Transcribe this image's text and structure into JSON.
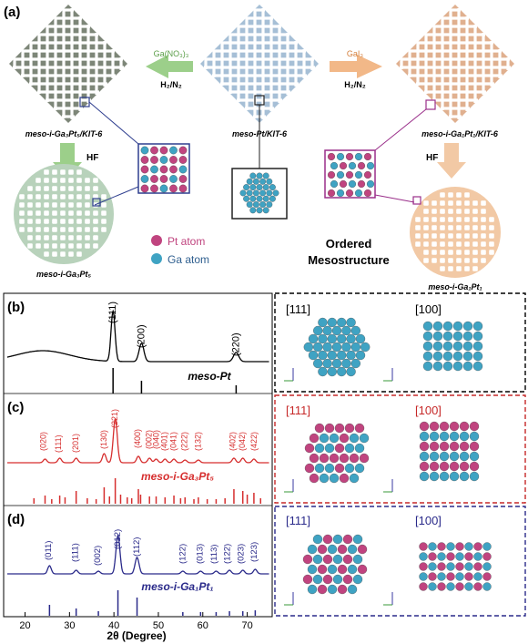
{
  "panel_a": {
    "label": "(a)",
    "left_arrow": {
      "top": "Ga(NO₃)₃",
      "bottom": "H₂/N₂"
    },
    "right_arrow": {
      "top": "GaI₃",
      "bottom": "H₂/N₂"
    },
    "left_hf": "HF",
    "right_hf": "HF",
    "label_left_top": "meso-i-Ga₃Pt₅/KIT-6",
    "label_center": "meso-Pt/KIT-6",
    "label_right_top": "meso-i-Ga₁Pt₁/KIT-6",
    "label_left_bottom": "meso-i-Ga₃Pt₅",
    "label_right_bottom": "meso-i-Ga₁Pt₁",
    "legend_pt": "Pt atom",
    "legend_ga": "Ga atom",
    "ordered": [
      "Ordered",
      "Mesostructure"
    ],
    "colors": {
      "gray": "#7d8678",
      "blue": "#a6bfd6",
      "orange": "#e0b08f",
      "green": "#b8d2bb",
      "peach": "#f2c9a5",
      "pt": "#c0447f",
      "ga": "#3fa3c3"
    }
  },
  "panel_b": {
    "label": "(b)",
    "sample": "meso-Pt",
    "peaks": [
      "(111)",
      "(200)",
      "(220)"
    ],
    "zone_a": "[111]",
    "zone_b": "[100]"
  },
  "panel_c": {
    "label": "(c)",
    "sample": "meso-i-Ga₃Pt₅",
    "peaks": [
      "(020)",
      "(111)",
      "(201)",
      "(130)",
      "(221)",
      "(400)",
      "(002)",
      "(040)",
      "(401)",
      "(041)",
      "(222)",
      "(132)",
      "(402)",
      "(042)",
      "(422)"
    ],
    "zone_a": "[111]",
    "zone_b": "[100]"
  },
  "panel_d": {
    "label": "(d)",
    "sample": "meso-i-Ga₁Pt₁",
    "peaks": [
      "(011)",
      "(111)",
      "(002)",
      "(012)",
      "(112)",
      "(122)",
      "(013)",
      "(113)",
      "(122)",
      "(023)",
      "(123)"
    ],
    "zone_a": "[111]",
    "zone_b": "[100]"
  },
  "axis": {
    "ticks": [
      "20",
      "30",
      "40",
      "50",
      "60",
      "70"
    ],
    "xlabel": "2θ (Degree)"
  }
}
